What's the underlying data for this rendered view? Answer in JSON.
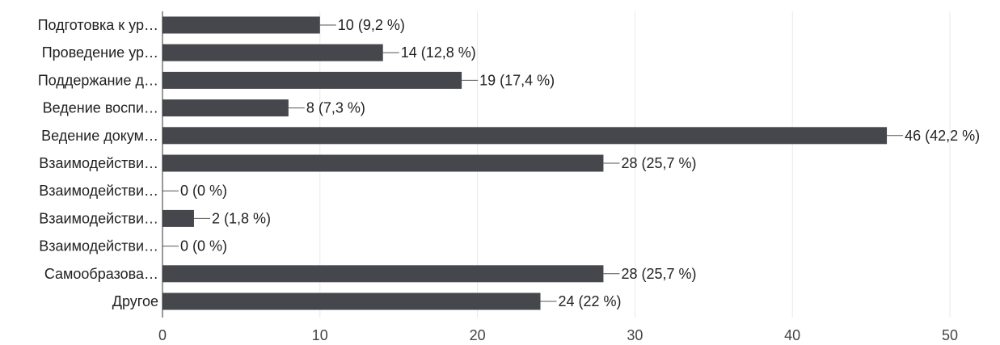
{
  "chart_data": {
    "type": "bar",
    "orientation": "horizontal",
    "categories": [
      "Подготовка к ур…",
      "Проведение ур…",
      "Поддержание д…",
      "Ведение воспи…",
      "Ведение докум…",
      "Взаимодействи…",
      "Взаимодействи…",
      "Взаимодействи…",
      "Взаимодействи…",
      "Самообразова…",
      "Другое"
    ],
    "values": [
      10,
      14,
      19,
      8,
      46,
      28,
      0,
      2,
      0,
      28,
      24
    ],
    "data_labels": [
      "10 (9,2 %)",
      "14 (12,8 %)",
      "19 (17,4 %)",
      "8 (7,3 %)",
      "46 (42,2 %)",
      "28 (25,7 %)",
      "0 (0 %)",
      "2 (1,8 %)",
      "0 (0 %)",
      "28 (25,7 %)",
      "24 (22 %)"
    ],
    "xlim": [
      0,
      50
    ],
    "x_ticks": [
      0,
      10,
      20,
      30,
      40,
      50
    ],
    "grid": true,
    "bar_color": "#46474d",
    "grid_color": "#e8e8e8",
    "title": "",
    "xlabel": "",
    "ylabel": ""
  }
}
